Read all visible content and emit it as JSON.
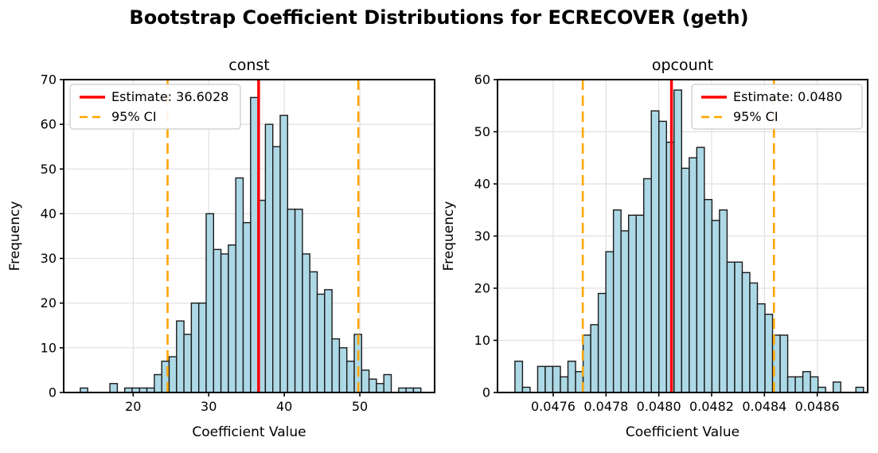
{
  "header": {
    "suptitle": "Bootstrap Coefficient Distributions for ECRECOVER (geth)"
  },
  "colors": {
    "bar_fill": "#ADD8E6",
    "bar_edge": "#1a1a1a",
    "estimate_line": "#ff0000",
    "ci_line": "#FFA500",
    "grid": "#e0e0e0",
    "spine": "#000000",
    "text": "#000000",
    "legend_border": "#cccccc",
    "legend_bg": "#ffffff"
  },
  "chart_data": [
    {
      "type": "histogram",
      "title": "const",
      "xlabel": "Coefficient Value",
      "ylabel": "Frequency",
      "legend_position": "upper-left",
      "estimate": {
        "label": "Estimate: 36.6028",
        "value": 36.6028
      },
      "ci": {
        "label": "95% CI",
        "low": 24.55,
        "high": 49.8
      },
      "xlim": [
        10.8,
        59.9
      ],
      "ylim": [
        0,
        70
      ],
      "xticks": [
        {
          "v": 20,
          "label": "20"
        },
        {
          "v": 30,
          "label": "30"
        },
        {
          "v": 40,
          "label": "40"
        },
        {
          "v": 50,
          "label": "50"
        }
      ],
      "yticks": [
        {
          "v": 0,
          "label": "0"
        },
        {
          "v": 10,
          "label": "10"
        },
        {
          "v": 20,
          "label": "20"
        },
        {
          "v": 30,
          "label": "30"
        },
        {
          "v": 40,
          "label": "40"
        },
        {
          "v": 50,
          "label": "50"
        },
        {
          "v": 60,
          "label": "60"
        },
        {
          "v": 70,
          "label": "70"
        }
      ],
      "bins": {
        "start": 13.0,
        "width": 0.98,
        "counts": [
          1,
          0,
          0,
          0,
          2,
          0,
          1,
          1,
          1,
          1,
          4,
          7,
          8,
          16,
          13,
          20,
          20,
          40,
          32,
          31,
          33,
          48,
          38,
          66,
          43,
          60,
          55,
          62,
          41,
          41,
          31,
          27,
          22,
          23,
          12,
          10,
          7,
          13,
          5,
          3,
          2,
          4,
          0,
          1,
          1,
          1,
          0
        ]
      }
    },
    {
      "type": "histogram",
      "title": "opcount",
      "xlabel": "Coefficient Value",
      "ylabel": "Frequency",
      "legend_position": "upper-right",
      "estimate": {
        "label": "Estimate: 0.0480",
        "value": 0.048048
      },
      "ci": {
        "label": "95% CI",
        "low": 0.047712,
        "high": 0.048436
      },
      "xlim": [
        0.047389,
        0.048791
      ],
      "ylim": [
        0,
        60
      ],
      "xticks": [
        {
          "v": 0.0476,
          "label": "0.0476"
        },
        {
          "v": 0.0478,
          "label": "0.0478"
        },
        {
          "v": 0.048,
          "label": "0.0480"
        },
        {
          "v": 0.0482,
          "label": "0.0482"
        },
        {
          "v": 0.0484,
          "label": "0.0484"
        },
        {
          "v": 0.0486,
          "label": "0.0486"
        }
      ],
      "yticks": [
        {
          "v": 0,
          "label": "0"
        },
        {
          "v": 10,
          "label": "10"
        },
        {
          "v": 20,
          "label": "20"
        },
        {
          "v": 30,
          "label": "30"
        },
        {
          "v": 40,
          "label": "40"
        },
        {
          "v": 50,
          "label": "50"
        },
        {
          "v": 60,
          "label": "60"
        }
      ],
      "bins": {
        "start": 0.047455,
        "width": 2.87e-05,
        "counts": [
          6,
          1,
          0,
          5,
          5,
          5,
          3,
          6,
          4,
          11,
          13,
          19,
          27,
          35,
          31,
          34,
          34,
          41,
          54,
          52,
          48,
          58,
          43,
          45,
          47,
          37,
          33,
          35,
          25,
          25,
          23,
          21,
          17,
          15,
          11,
          11,
          3,
          3,
          4,
          3,
          1,
          0,
          2,
          0,
          0,
          1
        ]
      }
    }
  ]
}
